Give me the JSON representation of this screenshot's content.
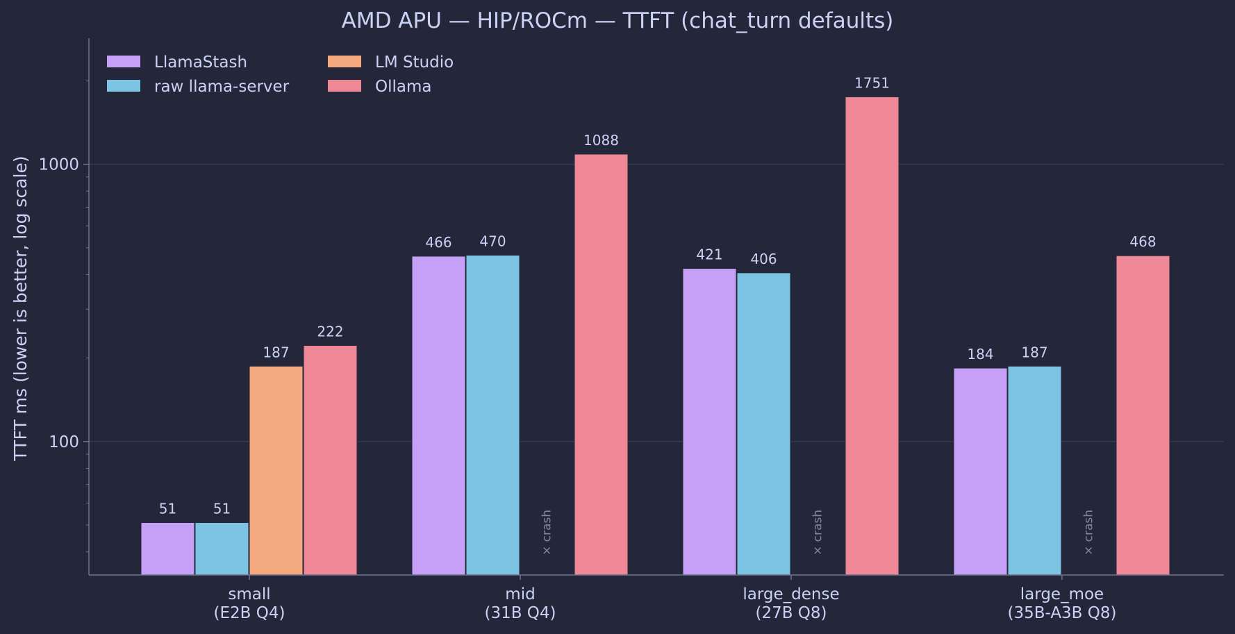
{
  "chart_data": {
    "type": "bar",
    "title": "AMD APU  —  HIP/ROCm  —  TTFT (chat_turn defaults)",
    "xlabel": "",
    "ylabel": "TTFT ms  (lower is better, log scale)",
    "yscale": "log",
    "ylim": [
      33,
      2850
    ],
    "yticks": [
      100,
      1000
    ],
    "ytick_labels": [
      "100",
      "1000"
    ],
    "grid": "horizontal-major",
    "legend": "top-left",
    "categories": [
      [
        "small",
        "(E2B Q4)"
      ],
      [
        "mid",
        "(31B Q4)"
      ],
      [
        "large_dense",
        "(27B Q8)"
      ],
      [
        "large_moe",
        "(35B-A3B Q8)"
      ]
    ],
    "series": [
      {
        "name": "LlamaStash",
        "color": "#c6a0f6",
        "values": [
          51,
          466,
          421,
          184
        ]
      },
      {
        "name": "raw llama-server",
        "color": "#7dc4e4",
        "values": [
          51,
          470,
          406,
          187
        ]
      },
      {
        "name": "LM Studio",
        "color": "#f5a97f",
        "values": [
          187,
          null,
          null,
          null
        ]
      },
      {
        "name": "Ollama",
        "color": "#ee8896",
        "values": [
          222,
          1088,
          1751,
          468
        ]
      }
    ],
    "annotations": [
      {
        "series": "LM Studio",
        "category": "mid",
        "text": "× crash"
      },
      {
        "series": "LM Studio",
        "category": "large_dense",
        "text": "× crash"
      },
      {
        "series": "LM Studio",
        "category": "large_moe",
        "text": "× crash"
      }
    ],
    "colors": {
      "background": "#24273a",
      "text": "#cad3f5",
      "axis": "#6e738d",
      "grid": "#363a4f",
      "bar_edge": "#24273a",
      "crash_text": "#8087a2"
    }
  }
}
